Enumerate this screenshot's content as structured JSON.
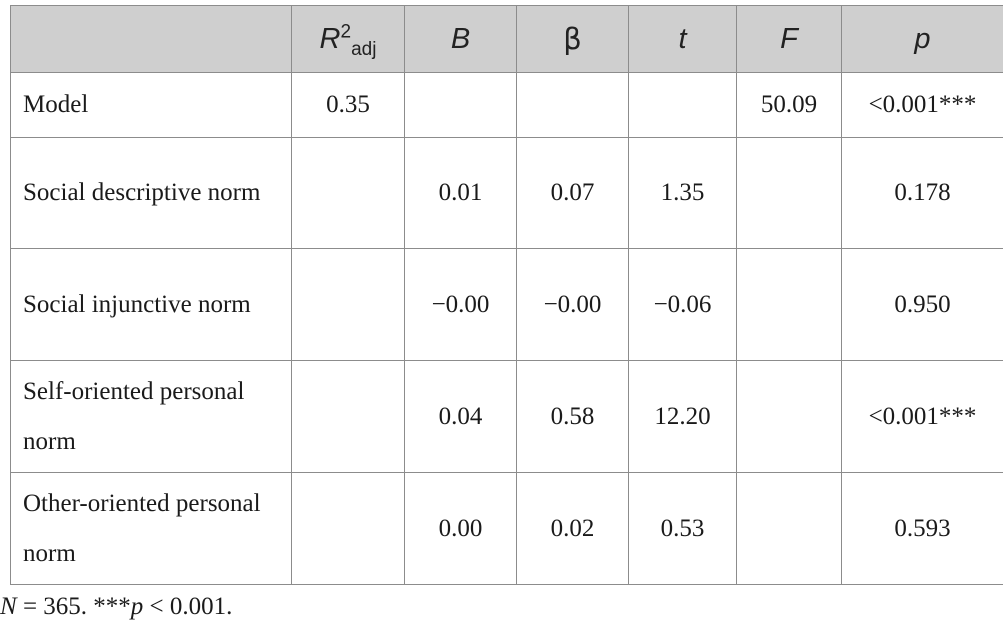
{
  "table": {
    "headers": {
      "label": "",
      "r2_main": "R",
      "r2_sup": "2",
      "r2_sub": "adj",
      "b": "B",
      "beta": "β",
      "t": "t",
      "f": "F",
      "p": "p"
    },
    "rows": [
      {
        "label": "Model",
        "r2": "0.35",
        "b": "",
        "beta": "",
        "t": "",
        "f": "50.09",
        "p": "<0.001***"
      },
      {
        "label": "Social descriptive norm",
        "r2": "",
        "b": "0.01",
        "beta": "0.07",
        "t": "1.35",
        "f": "",
        "p": "0.178"
      },
      {
        "label": "Social injunctive norm",
        "r2": "",
        "b": "−0.00",
        "beta": "−0.00",
        "t": "−0.06",
        "f": "",
        "p": "0.950"
      },
      {
        "label": "Self-oriented personal norm",
        "r2": "",
        "b": "0.04",
        "beta": "0.58",
        "t": "12.20",
        "f": "",
        "p": "<0.001***"
      },
      {
        "label": "Other-oriented personal norm",
        "r2": "",
        "b": "0.00",
        "beta": "0.02",
        "t": "0.53",
        "f": "",
        "p": "0.593"
      }
    ]
  },
  "note": {
    "n_var": "N",
    "n_text": " = 365. ***",
    "p_var": "p",
    "p_text": " < 0.001."
  }
}
